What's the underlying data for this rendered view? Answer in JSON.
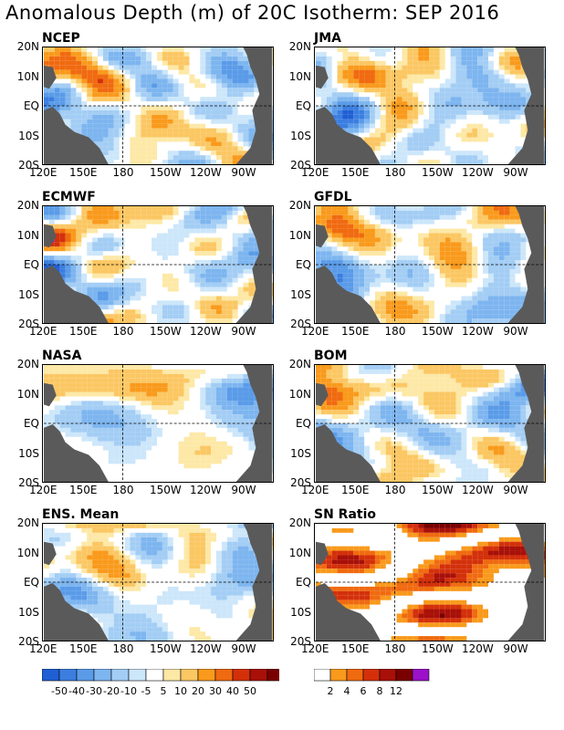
{
  "title": "Anomalous Depth (m) of 20C Isotherm: SEP 2016",
  "colors": {
    "land": "#5a5a5a",
    "neg": [
      "#1f5fd4",
      "#3b7ee0",
      "#5a9be8",
      "#7db5ef",
      "#a3cdf4",
      "#cce6fa"
    ],
    "neutral": "#ffffff",
    "pos": [
      "#fde8a6",
      "#fbc763",
      "#f99a1c",
      "#f06a10",
      "#d3300a",
      "#a81008",
      "#7a0000",
      "#9b12c8"
    ],
    "sn": [
      "#ffffff",
      "#f99a1c",
      "#f06a10",
      "#d3300a",
      "#a81008",
      "#7a0000",
      "#9b12c8"
    ]
  },
  "chart_data": [
    {
      "type": "heatmap",
      "title": "NCEP",
      "ylim": [
        "20S",
        "20N"
      ],
      "xlim": [
        "120E",
        "80W"
      ],
      "yticks": [
        "20N",
        "10N",
        "EQ",
        "10S",
        "20S"
      ],
      "xticks": [
        "120E",
        "150E",
        "180",
        "150W",
        "120W",
        "90W"
      ],
      "seed": 11
    },
    {
      "type": "heatmap",
      "title": "JMA",
      "ylim": [
        "20S",
        "20N"
      ],
      "xlim": [
        "120E",
        "80W"
      ],
      "yticks": [
        "20N",
        "10N",
        "EQ",
        "10S",
        "20S"
      ],
      "xticks": [
        "120E",
        "150E",
        "180",
        "150W",
        "120W",
        "90W"
      ],
      "seed": 23
    },
    {
      "type": "heatmap",
      "title": "ECMWF",
      "ylim": [
        "20S",
        "20N"
      ],
      "xlim": [
        "120E",
        "80W"
      ],
      "yticks": [
        "20N",
        "10N",
        "EQ",
        "10S",
        "20S"
      ],
      "xticks": [
        "120E",
        "150E",
        "180",
        "150W",
        "120W",
        "90W"
      ],
      "seed": 37
    },
    {
      "type": "heatmap",
      "title": "GFDL",
      "ylim": [
        "20S",
        "20N"
      ],
      "xlim": [
        "120E",
        "80W"
      ],
      "yticks": [
        "20N",
        "10N",
        "EQ",
        "10S",
        "20S"
      ],
      "xticks": [
        "120E",
        "150E",
        "180",
        "150W",
        "120W",
        "90W"
      ],
      "seed": 41
    },
    {
      "type": "heatmap",
      "title": "NASA",
      "ylim": [
        "20S",
        "20N"
      ],
      "xlim": [
        "120E",
        "80W"
      ],
      "yticks": [
        "20N",
        "10N",
        "EQ",
        "10S",
        "20S"
      ],
      "xticks": [
        "120E",
        "150E",
        "180",
        "150W",
        "120W",
        "90W"
      ],
      "seed": 53
    },
    {
      "type": "heatmap",
      "title": "BOM",
      "ylim": [
        "20S",
        "20N"
      ],
      "xlim": [
        "120E",
        "80W"
      ],
      "yticks": [
        "20N",
        "10N",
        "EQ",
        "10S",
        "20S"
      ],
      "xticks": [
        "120E",
        "150E",
        "180",
        "150W",
        "120W",
        "90W"
      ],
      "seed": 67
    },
    {
      "type": "heatmap",
      "title": "ENS. Mean",
      "ylim": [
        "20S",
        "20N"
      ],
      "xlim": [
        "120E",
        "80W"
      ],
      "yticks": [
        "20N",
        "10N",
        "EQ",
        "10S",
        "20S"
      ],
      "xticks": [
        "120E",
        "150E",
        "180",
        "150W",
        "120W",
        "90W"
      ],
      "seed": 71
    },
    {
      "type": "heatmap",
      "title": "SN Ratio",
      "ylim": [
        "20S",
        "20N"
      ],
      "xlim": [
        "120E",
        "80W"
      ],
      "yticks": [
        "20N",
        "10N",
        "EQ",
        "10S",
        "20S"
      ],
      "xticks": [
        "120E",
        "150E",
        "180",
        "150W",
        "120W",
        "90W"
      ],
      "seed": 89
    }
  ],
  "legend_anom": {
    "labels": [
      "-50",
      "-40",
      "-30",
      "-20",
      "-10",
      "-5",
      "5",
      "10",
      "20",
      "30",
      "40",
      "50"
    ]
  },
  "legend_sn": {
    "labels": [
      "2",
      "4",
      "6",
      "8",
      "12"
    ]
  }
}
